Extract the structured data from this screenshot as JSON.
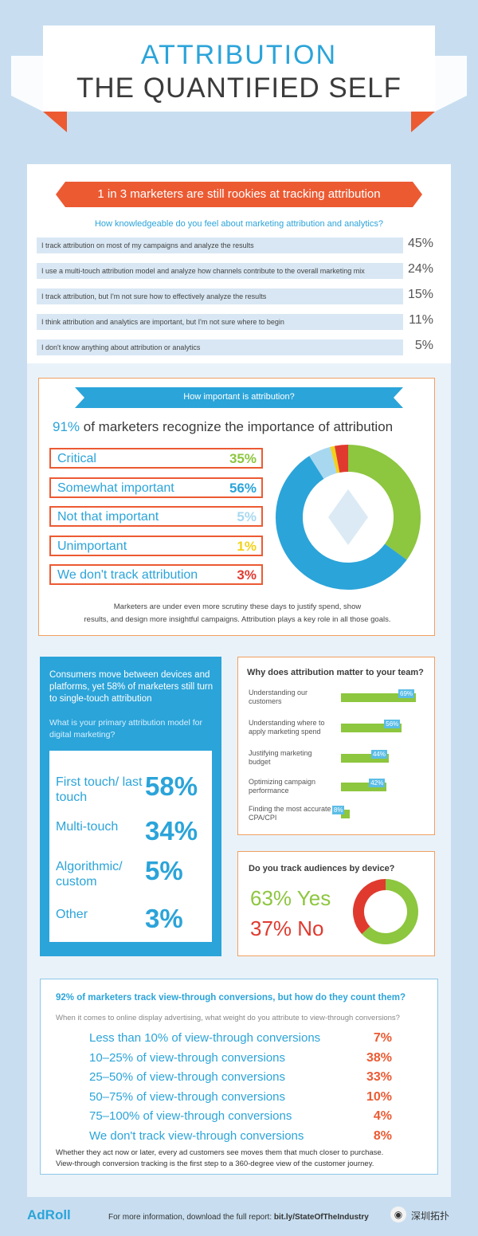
{
  "header": {
    "title_line1": "ATTRIBUTION",
    "title_line2": "THE QUANTIFIED SELF"
  },
  "colors": {
    "blue": "#2ba4d9",
    "orange": "#ec5a32",
    "green": "#8dc63f",
    "yellow": "#f2d21b",
    "red": "#e03a2f",
    "lightblue": "#a8d8f0",
    "grey": "#3b3b3b"
  },
  "knowledge": {
    "banner": "1 in 3 marketers are still rookies at tracking attribution",
    "question": "How knowledgeable do you feel about marketing attribution and analytics?"
  },
  "importance": {
    "banner": "How important is attribution?",
    "headline_pct": "91%",
    "headline_rest": " of marketers recognize the importance of attribution",
    "note_line1": "Marketers are under even more scrutiny these days to justify spend, show",
    "note_line2": "results, and design more insightful campaigns. Attribution plays a key role in all those goals."
  },
  "model": {
    "intro": "Consumers move between devices and platforms, yet 58% of marketers still turn to single-touch attribution",
    "question": "What is your primary attribution model for digital marketing?"
  },
  "why": {
    "title": "Why does attribution matter to your team?"
  },
  "device": {
    "title": "Do you track audiences by device?",
    "yes_label": "63% Yes",
    "no_label": "37% No"
  },
  "viewthrough": {
    "title": "92% of marketers track view-through conversions, but how do they count them?",
    "question": "When it comes to online display advertising, what weight do you attribute to view-through conversions?",
    "note_line1": "Whether they act now or later, every ad customers see moves them that much closer to purchase.",
    "note_line2": "View-through conversion tracking is the first step to a 360-degree view of the customer journey."
  },
  "footer": {
    "logo": "AdRoll",
    "text_prefix": "For more information, download the full report: ",
    "link": "bit.ly/StateOfTheIndustry",
    "watermark": "深圳拓扑"
  },
  "chart_data": [
    {
      "type": "bar",
      "title": "How knowledgeable do you feel about marketing attribution and analytics?",
      "categories": [
        "I track attribution on most of my campaigns and analyze the results",
        "I use a multi-touch attribution model and analyze how channels contribute to the overall marketing mix",
        "I track attribution, but I'm not sure how to effectively analyze the results",
        "I think attribution and analytics are important, but I'm not sure where to begin",
        "I don't know anything about attribution or analytics"
      ],
      "values": [
        45,
        24,
        15,
        11,
        5
      ],
      "value_labels": [
        "45%",
        "24%",
        "15%",
        "11%",
        "5%"
      ]
    },
    {
      "type": "pie",
      "title": "How important is attribution?",
      "categories": [
        "Critical",
        "Somewhat important",
        "Not that important",
        "Unimportant",
        "We don't track attribution"
      ],
      "values": [
        35,
        56,
        5,
        1,
        3
      ],
      "value_labels": [
        "35%",
        "56%",
        "5%",
        "1%",
        "3%"
      ],
      "colors": [
        "#8dc63f",
        "#2ba4d9",
        "#a8d8f0",
        "#f2d21b",
        "#e03a2f"
      ]
    },
    {
      "type": "table",
      "title": "What is your primary attribution model for digital marketing?",
      "categories": [
        "First touch/ last touch",
        "Multi-touch",
        "Algorithmic/ custom",
        "Other"
      ],
      "values": [
        58,
        34,
        5,
        3
      ],
      "value_labels": [
        "58%",
        "34%",
        "5%",
        "3%"
      ]
    },
    {
      "type": "bar",
      "title": "Why does attribution matter to your team?",
      "categories": [
        "Understanding our customers",
        "Understanding where to apply marketing spend",
        "Justifying marketing budget",
        "Optimizing campaign performance",
        "Finding the most accurate CPA/CPI"
      ],
      "values": [
        69,
        56,
        44,
        42,
        8
      ],
      "value_labels": [
        "69%",
        "56%",
        "44%",
        "42%",
        "8%"
      ]
    },
    {
      "type": "pie",
      "title": "Do you track audiences by device?",
      "categories": [
        "Yes",
        "No"
      ],
      "values": [
        63,
        37
      ],
      "colors": [
        "#8dc63f",
        "#e03a2f"
      ]
    },
    {
      "type": "table",
      "title": "When it comes to online display advertising, what weight do you attribute to view-through conversions?",
      "categories": [
        "Less than 10% of view-through conversions",
        "10–25% of view-through conversions",
        "25–50% of view-through conversions",
        "50–75% of view-through conversions",
        "75–100% of view-through conversions",
        "We don't track view-through conversions"
      ],
      "values": [
        7,
        38,
        33,
        10,
        4,
        8
      ],
      "value_labels": [
        "7%",
        "38%",
        "33%",
        "10%",
        "4%",
        "8%"
      ]
    }
  ]
}
